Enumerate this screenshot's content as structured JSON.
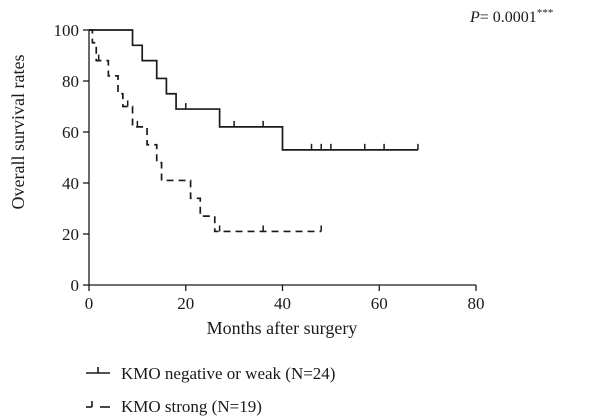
{
  "chart_data": {
    "type": "line",
    "chart_kind": "kaplan-meier step survival curve",
    "xlabel": "Months after surgery",
    "ylabel": "Overall survival rates",
    "xlim": [
      0,
      80
    ],
    "ylim": [
      0,
      100
    ],
    "x_ticks": [
      "0",
      "20",
      "40",
      "60",
      "80"
    ],
    "y_ticks": [
      "0",
      "20",
      "40",
      "60",
      "80",
      "100"
    ],
    "grid": false,
    "legend_position": "bottom-left, below axes",
    "annotation": {
      "p_label": "P",
      "p_value": "= 0.0001",
      "significance": "***"
    },
    "series": [
      {
        "name": "KMO negative or weak (N=24)",
        "line_style": "solid",
        "color": "#1a1a1a",
        "steps": [
          [
            0,
            100
          ],
          [
            9,
            94
          ],
          [
            11,
            88
          ],
          [
            14,
            81
          ],
          [
            16,
            75
          ],
          [
            18,
            69
          ],
          [
            27,
            62
          ],
          [
            40,
            53
          ],
          [
            68,
            53
          ]
        ],
        "censored_x": [
          20,
          30,
          36,
          46,
          48,
          50,
          57,
          61,
          68
        ]
      },
      {
        "name": "KMO strong (N=19)",
        "line_style": "dashed",
        "color": "#1a1a1a",
        "steps": [
          [
            0,
            100
          ],
          [
            0.7,
            95
          ],
          [
            1.5,
            88
          ],
          [
            4,
            82
          ],
          [
            6,
            75
          ],
          [
            7,
            70
          ],
          [
            9,
            62
          ],
          [
            12,
            55
          ],
          [
            14,
            48
          ],
          [
            15,
            41
          ],
          [
            21,
            34
          ],
          [
            23,
            27
          ],
          [
            26,
            21
          ],
          [
            48,
            21
          ]
        ],
        "censored_x": [
          2,
          8,
          10,
          27,
          36,
          48
        ]
      }
    ]
  }
}
